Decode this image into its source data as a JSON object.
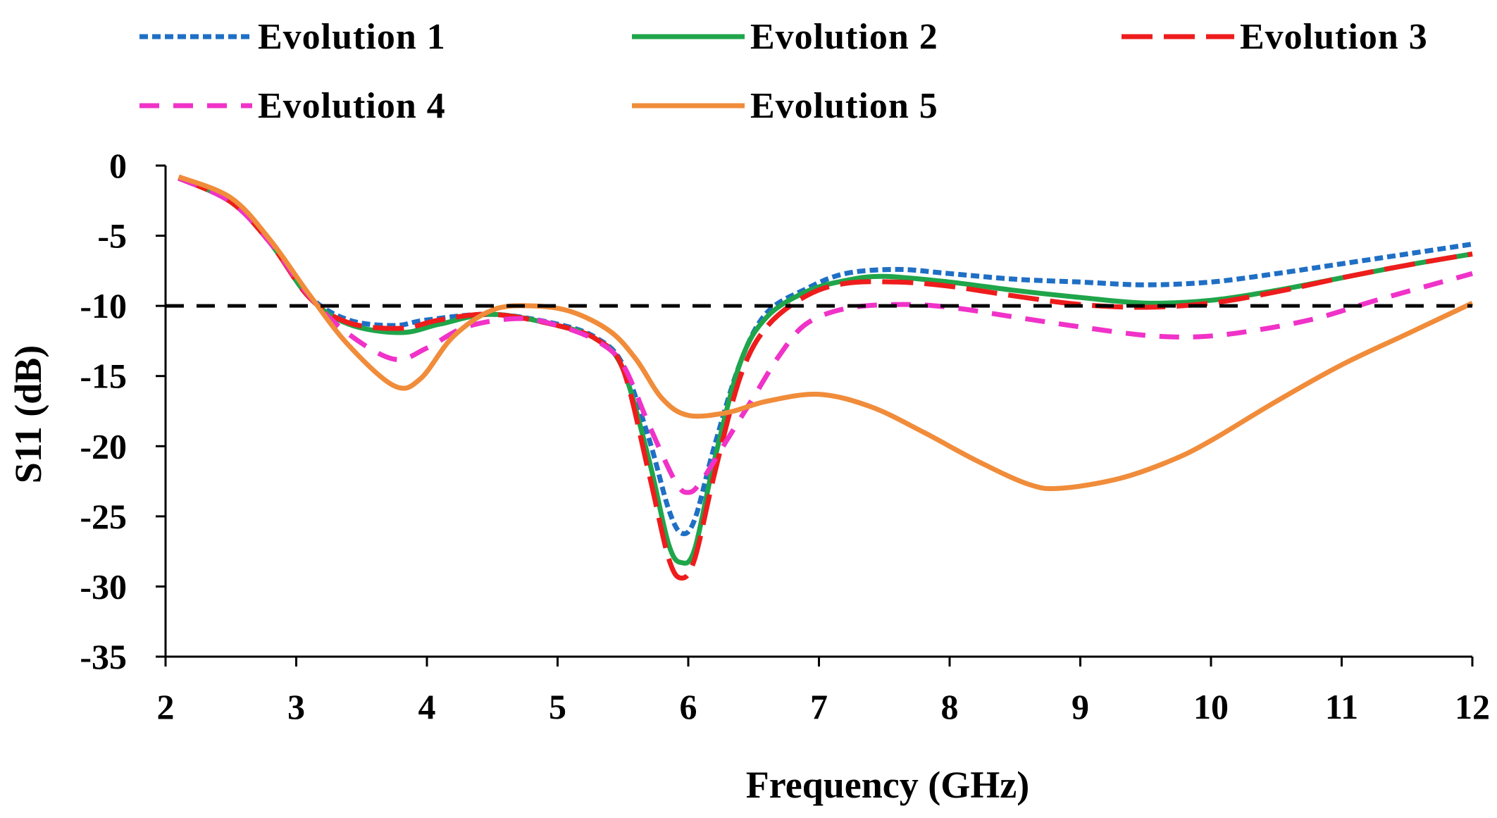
{
  "chart_data": {
    "type": "line",
    "xlabel": "Frequency (GHz)",
    "ylabel": "S11  (dB)",
    "xlim": [
      2,
      12
    ],
    "ylim": [
      -35,
      0
    ],
    "xticks": [
      "2",
      "3",
      "4",
      "5",
      "6",
      "7",
      "8",
      "9",
      "10",
      "11",
      "12"
    ],
    "yticks": [
      "0",
      "-5",
      "-10",
      "-15",
      "-20",
      "-25",
      "-30",
      "-35"
    ],
    "grid": false,
    "legend_position": "top",
    "reference_line": {
      "y": -10,
      "color": "#000000",
      "style": "dashed"
    },
    "series": [
      {
        "name": "Evolution 1",
        "color": "#1f6fc5",
        "style": "dotted",
        "points": [
          [
            2.1,
            -0.9
          ],
          [
            2.5,
            -2.5
          ],
          [
            2.8,
            -5.5
          ],
          [
            3.1,
            -9.3
          ],
          [
            3.4,
            -11.0
          ],
          [
            3.75,
            -11.4
          ],
          [
            4.0,
            -11.0
          ],
          [
            4.5,
            -10.6
          ],
          [
            5.0,
            -11.3
          ],
          [
            5.3,
            -12.3
          ],
          [
            5.5,
            -14.2
          ],
          [
            5.7,
            -19.5
          ],
          [
            5.85,
            -24.5
          ],
          [
            5.95,
            -26.2
          ],
          [
            6.05,
            -25.2
          ],
          [
            6.2,
            -20.0
          ],
          [
            6.4,
            -14.0
          ],
          [
            6.6,
            -10.5
          ],
          [
            6.9,
            -8.8
          ],
          [
            7.2,
            -7.7
          ],
          [
            7.6,
            -7.4
          ],
          [
            8.0,
            -7.7
          ],
          [
            8.5,
            -8.1
          ],
          [
            9.0,
            -8.3
          ],
          [
            9.5,
            -8.5
          ],
          [
            10.0,
            -8.3
          ],
          [
            10.5,
            -7.7
          ],
          [
            11.0,
            -7.0
          ],
          [
            11.5,
            -6.3
          ],
          [
            12.0,
            -5.6
          ]
        ]
      },
      {
        "name": "Evolution 2",
        "color": "#1fa54a",
        "style": "solid",
        "points": [
          [
            2.1,
            -0.9
          ],
          [
            2.5,
            -2.6
          ],
          [
            2.8,
            -5.5
          ],
          [
            3.1,
            -9.4
          ],
          [
            3.4,
            -11.3
          ],
          [
            3.8,
            -11.9
          ],
          [
            4.1,
            -11.3
          ],
          [
            4.5,
            -10.6
          ],
          [
            5.0,
            -11.4
          ],
          [
            5.3,
            -12.4
          ],
          [
            5.5,
            -14.5
          ],
          [
            5.7,
            -21.0
          ],
          [
            5.85,
            -27.0
          ],
          [
            5.95,
            -28.3
          ],
          [
            6.05,
            -27.3
          ],
          [
            6.2,
            -21.0
          ],
          [
            6.4,
            -14.0
          ],
          [
            6.6,
            -10.8
          ],
          [
            6.9,
            -9.0
          ],
          [
            7.2,
            -8.2
          ],
          [
            7.5,
            -7.9
          ],
          [
            8.0,
            -8.3
          ],
          [
            8.5,
            -8.9
          ],
          [
            9.0,
            -9.4
          ],
          [
            9.5,
            -9.8
          ],
          [
            10.0,
            -9.6
          ],
          [
            10.5,
            -8.9
          ],
          [
            11.0,
            -8.0
          ],
          [
            11.5,
            -7.1
          ],
          [
            12.0,
            -6.3
          ]
        ]
      },
      {
        "name": "Evolution 3",
        "color": "#ee1c1c",
        "style": "long-dash",
        "points": [
          [
            2.1,
            -0.9
          ],
          [
            2.5,
            -2.6
          ],
          [
            2.8,
            -5.5
          ],
          [
            3.1,
            -9.4
          ],
          [
            3.4,
            -11.2
          ],
          [
            3.8,
            -11.6
          ],
          [
            4.1,
            -11.0
          ],
          [
            4.5,
            -10.6
          ],
          [
            5.0,
            -11.4
          ],
          [
            5.3,
            -12.4
          ],
          [
            5.5,
            -14.5
          ],
          [
            5.7,
            -22.0
          ],
          [
            5.85,
            -28.0
          ],
          [
            5.95,
            -29.4
          ],
          [
            6.05,
            -28.0
          ],
          [
            6.2,
            -22.0
          ],
          [
            6.4,
            -15.0
          ],
          [
            6.6,
            -11.5
          ],
          [
            6.9,
            -9.3
          ],
          [
            7.2,
            -8.4
          ],
          [
            7.6,
            -8.3
          ],
          [
            8.0,
            -8.6
          ],
          [
            8.5,
            -9.3
          ],
          [
            9.0,
            -9.9
          ],
          [
            9.5,
            -10.1
          ],
          [
            10.0,
            -9.8
          ],
          [
            10.5,
            -9.0
          ],
          [
            11.0,
            -8.0
          ],
          [
            11.5,
            -7.1
          ],
          [
            12.0,
            -6.3
          ]
        ]
      },
      {
        "name": "Evolution 4",
        "color": "#f032c8",
        "style": "dashed",
        "points": [
          [
            2.1,
            -0.9
          ],
          [
            2.5,
            -2.6
          ],
          [
            2.8,
            -5.5
          ],
          [
            3.1,
            -9.3
          ],
          [
            3.4,
            -12.0
          ],
          [
            3.75,
            -13.8
          ],
          [
            4.0,
            -13.0
          ],
          [
            4.3,
            -11.5
          ],
          [
            4.7,
            -10.9
          ],
          [
            5.0,
            -11.4
          ],
          [
            5.3,
            -12.5
          ],
          [
            5.5,
            -14.2
          ],
          [
            5.7,
            -18.5
          ],
          [
            5.9,
            -22.5
          ],
          [
            6.0,
            -23.3
          ],
          [
            6.1,
            -22.5
          ],
          [
            6.3,
            -19.5
          ],
          [
            6.5,
            -16.5
          ],
          [
            6.7,
            -13.5
          ],
          [
            6.9,
            -11.3
          ],
          [
            7.2,
            -10.2
          ],
          [
            7.6,
            -9.9
          ],
          [
            8.0,
            -10.1
          ],
          [
            8.5,
            -10.8
          ],
          [
            9.0,
            -11.5
          ],
          [
            9.5,
            -12.1
          ],
          [
            9.9,
            -12.2
          ],
          [
            10.3,
            -11.8
          ],
          [
            10.8,
            -10.9
          ],
          [
            11.3,
            -9.5
          ],
          [
            12.0,
            -7.7
          ]
        ]
      },
      {
        "name": "Evolution 5",
        "color": "#f08c3a",
        "style": "solid",
        "points": [
          [
            2.1,
            -0.8
          ],
          [
            2.5,
            -2.3
          ],
          [
            2.8,
            -5.3
          ],
          [
            3.1,
            -9.2
          ],
          [
            3.4,
            -12.8
          ],
          [
            3.75,
            -15.7
          ],
          [
            3.95,
            -15.2
          ],
          [
            4.2,
            -12.2
          ],
          [
            4.5,
            -10.3
          ],
          [
            4.8,
            -10.0
          ],
          [
            5.1,
            -10.4
          ],
          [
            5.4,
            -11.8
          ],
          [
            5.6,
            -13.8
          ],
          [
            5.8,
            -16.6
          ],
          [
            6.0,
            -17.8
          ],
          [
            6.3,
            -17.6
          ],
          [
            6.6,
            -16.8
          ],
          [
            7.0,
            -16.3
          ],
          [
            7.4,
            -17.2
          ],
          [
            7.8,
            -19.0
          ],
          [
            8.2,
            -21.0
          ],
          [
            8.6,
            -22.7
          ],
          [
            8.85,
            -23.0
          ],
          [
            9.3,
            -22.3
          ],
          [
            9.7,
            -21.0
          ],
          [
            10.0,
            -19.6
          ],
          [
            10.5,
            -16.8
          ],
          [
            11.0,
            -14.2
          ],
          [
            11.5,
            -12.0
          ],
          [
            12.0,
            -9.8
          ]
        ]
      }
    ]
  }
}
